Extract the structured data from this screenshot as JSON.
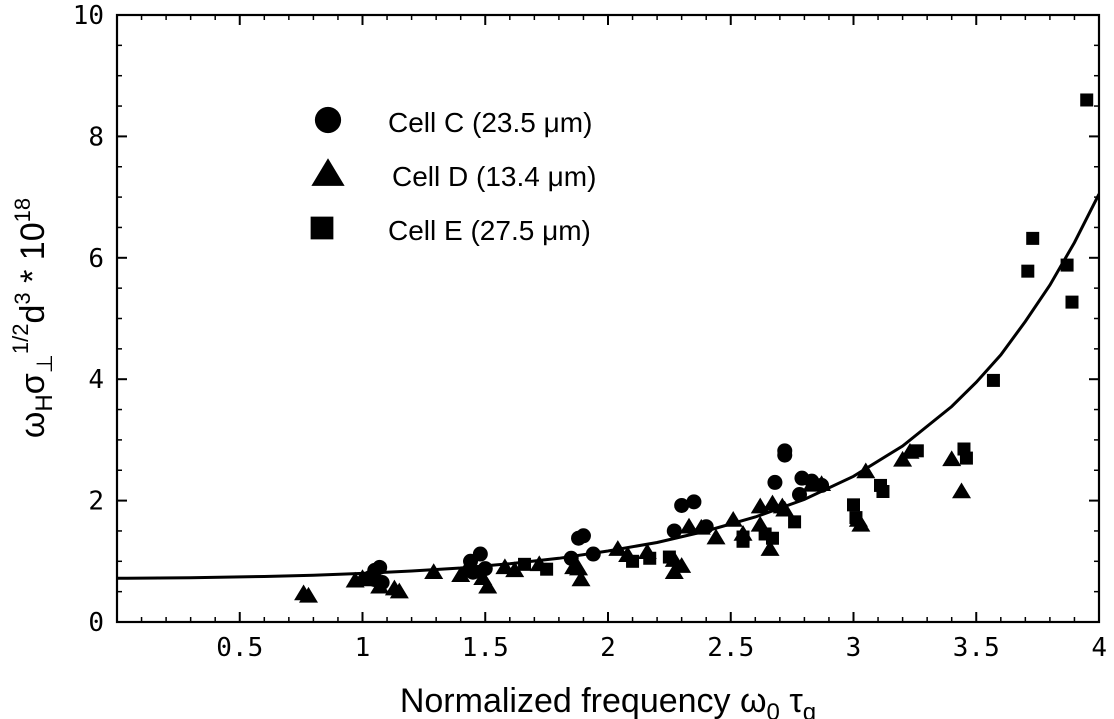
{
  "chart_data": {
    "type": "scatter",
    "title": "",
    "xlabel": {
      "main": "Normalized frequency ω",
      "sub0": "0",
      "mid": " τ",
      "sub1": "q"
    },
    "ylabel": {
      "p1": "ω",
      "p1sub": "H",
      "p2": "σ",
      "p2sub": "⊥",
      "p2sup": "1/2",
      "p3": "d",
      "p3sup": "3",
      "p4": " * 10",
      "p4sup": "18"
    },
    "xlim": [
      0,
      4
    ],
    "ylim": [
      0,
      10
    ],
    "xticks": [
      {
        "v": 0.5,
        "label": "0.5"
      },
      {
        "v": 1,
        "label": "1"
      },
      {
        "v": 1.5,
        "label": "1.5"
      },
      {
        "v": 2,
        "label": "2"
      },
      {
        "v": 2.5,
        "label": "2.5"
      },
      {
        "v": 3,
        "label": "3"
      },
      {
        "v": 3.5,
        "label": "3.5"
      },
      {
        "v": 4,
        "label": "4"
      }
    ],
    "yticks": [
      {
        "v": 0,
        "label": "0"
      },
      {
        "v": 2,
        "label": "2"
      },
      {
        "v": 4,
        "label": "4"
      },
      {
        "v": 6,
        "label": "6"
      },
      {
        "v": 8,
        "label": "8"
      },
      {
        "v": 10,
        "label": "10"
      }
    ],
    "legend_position": "top-left",
    "series": [
      {
        "name": "Cell C  (23.5 μm)",
        "marker": "circle",
        "color": "#000000",
        "points": [
          [
            1.03,
            0.73
          ],
          [
            1.05,
            0.85
          ],
          [
            1.07,
            0.9
          ],
          [
            1.05,
            0.7
          ],
          [
            1.08,
            0.65
          ],
          [
            1.44,
            1.0
          ],
          [
            1.48,
            1.12
          ],
          [
            1.5,
            0.88
          ],
          [
            1.45,
            0.82
          ],
          [
            1.85,
            1.05
          ],
          [
            1.88,
            1.38
          ],
          [
            1.9,
            1.42
          ],
          [
            1.94,
            1.12
          ],
          [
            2.27,
            1.5
          ],
          [
            2.3,
            1.92
          ],
          [
            2.35,
            1.98
          ],
          [
            2.4,
            1.57
          ],
          [
            2.68,
            2.3
          ],
          [
            2.72,
            2.82
          ],
          [
            2.72,
            2.75
          ],
          [
            2.78,
            2.1
          ],
          [
            2.79,
            2.37
          ],
          [
            2.83,
            2.32
          ],
          [
            2.87,
            2.25
          ]
        ]
      },
      {
        "name": "Cell D  (13.4 μm)",
        "marker": "triangle",
        "color": "#000000",
        "points": [
          [
            0.76,
            0.47
          ],
          [
            0.78,
            0.43
          ],
          [
            0.97,
            0.68
          ],
          [
            1.0,
            0.72
          ],
          [
            1.03,
            0.7
          ],
          [
            1.07,
            0.58
          ],
          [
            1.13,
            0.55
          ],
          [
            1.15,
            0.5
          ],
          [
            1.29,
            0.82
          ],
          [
            1.4,
            0.77
          ],
          [
            1.42,
            0.84
          ],
          [
            1.49,
            0.72
          ],
          [
            1.51,
            0.58
          ],
          [
            1.58,
            0.9
          ],
          [
            1.62,
            0.85
          ],
          [
            1.72,
            0.95
          ],
          [
            1.86,
            0.9
          ],
          [
            1.88,
            0.88
          ],
          [
            1.89,
            0.7
          ],
          [
            2.04,
            1.2
          ],
          [
            2.08,
            1.1
          ],
          [
            2.16,
            1.15
          ],
          [
            2.27,
            1.02
          ],
          [
            2.27,
            0.82
          ],
          [
            2.3,
            0.92
          ],
          [
            2.33,
            1.57
          ],
          [
            2.38,
            1.55
          ],
          [
            2.44,
            1.39
          ],
          [
            2.51,
            1.68
          ],
          [
            2.55,
            1.45
          ],
          [
            2.62,
            1.9
          ],
          [
            2.62,
            1.6
          ],
          [
            2.66,
            1.2
          ],
          [
            2.67,
            1.95
          ],
          [
            2.71,
            1.9
          ],
          [
            2.72,
            1.85
          ],
          [
            2.83,
            2.26
          ],
          [
            2.87,
            2.27
          ],
          [
            3.02,
            1.68
          ],
          [
            3.03,
            1.6
          ],
          [
            3.05,
            2.48
          ],
          [
            3.2,
            2.67
          ],
          [
            3.23,
            2.8
          ],
          [
            3.4,
            2.68
          ],
          [
            3.44,
            2.15
          ]
        ]
      },
      {
        "name": "Cell E  (27.5 μm)",
        "marker": "square",
        "color": "#000000",
        "points": [
          [
            1.66,
            0.95
          ],
          [
            1.75,
            0.87
          ],
          [
            2.1,
            1.0
          ],
          [
            2.17,
            1.05
          ],
          [
            2.25,
            1.07
          ],
          [
            2.55,
            1.4
          ],
          [
            2.55,
            1.33
          ],
          [
            2.64,
            1.45
          ],
          [
            2.67,
            1.38
          ],
          [
            2.76,
            1.65
          ],
          [
            3.0,
            1.93
          ],
          [
            3.01,
            1.72
          ],
          [
            3.11,
            2.25
          ],
          [
            3.12,
            2.15
          ],
          [
            3.26,
            2.82
          ],
          [
            3.45,
            2.85
          ],
          [
            3.46,
            2.7
          ],
          [
            3.57,
            3.98
          ],
          [
            3.71,
            5.78
          ],
          [
            3.73,
            6.32
          ],
          [
            3.87,
            5.88
          ],
          [
            3.89,
            5.27
          ],
          [
            3.95,
            8.6
          ]
        ]
      }
    ],
    "fit_curve": [
      [
        0.0,
        0.72
      ],
      [
        0.3,
        0.73
      ],
      [
        0.6,
        0.75
      ],
      [
        0.8,
        0.77
      ],
      [
        1.0,
        0.8
      ],
      [
        1.2,
        0.84
      ],
      [
        1.4,
        0.89
      ],
      [
        1.6,
        0.96
      ],
      [
        1.8,
        1.05
      ],
      [
        2.0,
        1.17
      ],
      [
        2.2,
        1.31
      ],
      [
        2.4,
        1.5
      ],
      [
        2.6,
        1.73
      ],
      [
        2.8,
        2.02
      ],
      [
        3.0,
        2.4
      ],
      [
        3.2,
        2.9
      ],
      [
        3.4,
        3.55
      ],
      [
        3.5,
        3.95
      ],
      [
        3.6,
        4.4
      ],
      [
        3.7,
        4.95
      ],
      [
        3.8,
        5.55
      ],
      [
        3.9,
        6.25
      ],
      [
        4.0,
        7.05
      ]
    ]
  }
}
